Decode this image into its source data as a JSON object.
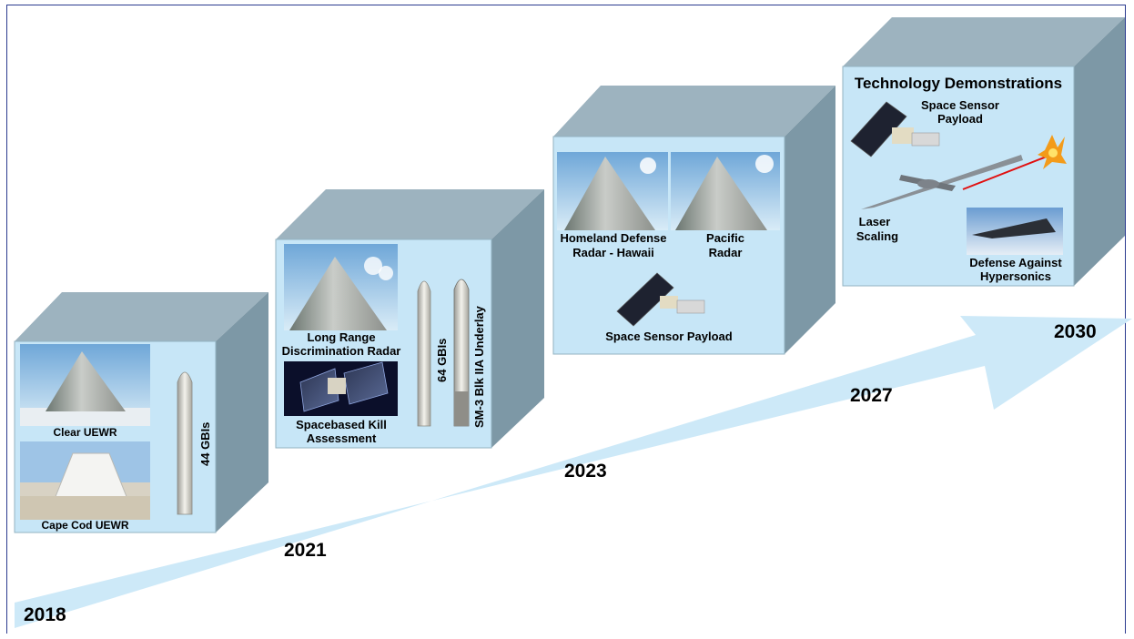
{
  "years": [
    "2018",
    "2021",
    "2023",
    "2027",
    "2030"
  ],
  "stage_2018": {
    "clear_radar": "Clear UEWR",
    "cape_cod_radar": "Cape Cod UEWR",
    "interceptors": "44 GBIs"
  },
  "stage_2021": {
    "lrdr_line1": "Long Range",
    "lrdr_line2": "Discrimination  Radar",
    "ska_line1": "Spacebased  Kill",
    "ska_line2": "Assessment",
    "interceptors": "64 GBIs",
    "sm3": "SM-3 Blk IIA Underlay"
  },
  "stage_2023": {
    "hawaii_line1": "Homeland  Defense",
    "hawaii_line2": "Radar - Hawaii",
    "pacific_line1": "Pacific",
    "pacific_line2": "Radar",
    "space_sensor": "Space Sensor Payload"
  },
  "stage_2030": {
    "title": "Technology Demonstrations",
    "space_sensor_line1": "Space  Sensor",
    "space_sensor_line2": "Payload",
    "laser_line1": "Laser",
    "laser_line2": "Scaling",
    "hypersonic_line1": "Defense  Against",
    "hypersonic_line2": "Hypersonics"
  },
  "colors": {
    "box_face": "#c7e6f7",
    "box_top": "#9db3bf",
    "box_side": "#7d98a6",
    "arrow": "#cde9f8",
    "frame": "#2b3a8f"
  }
}
